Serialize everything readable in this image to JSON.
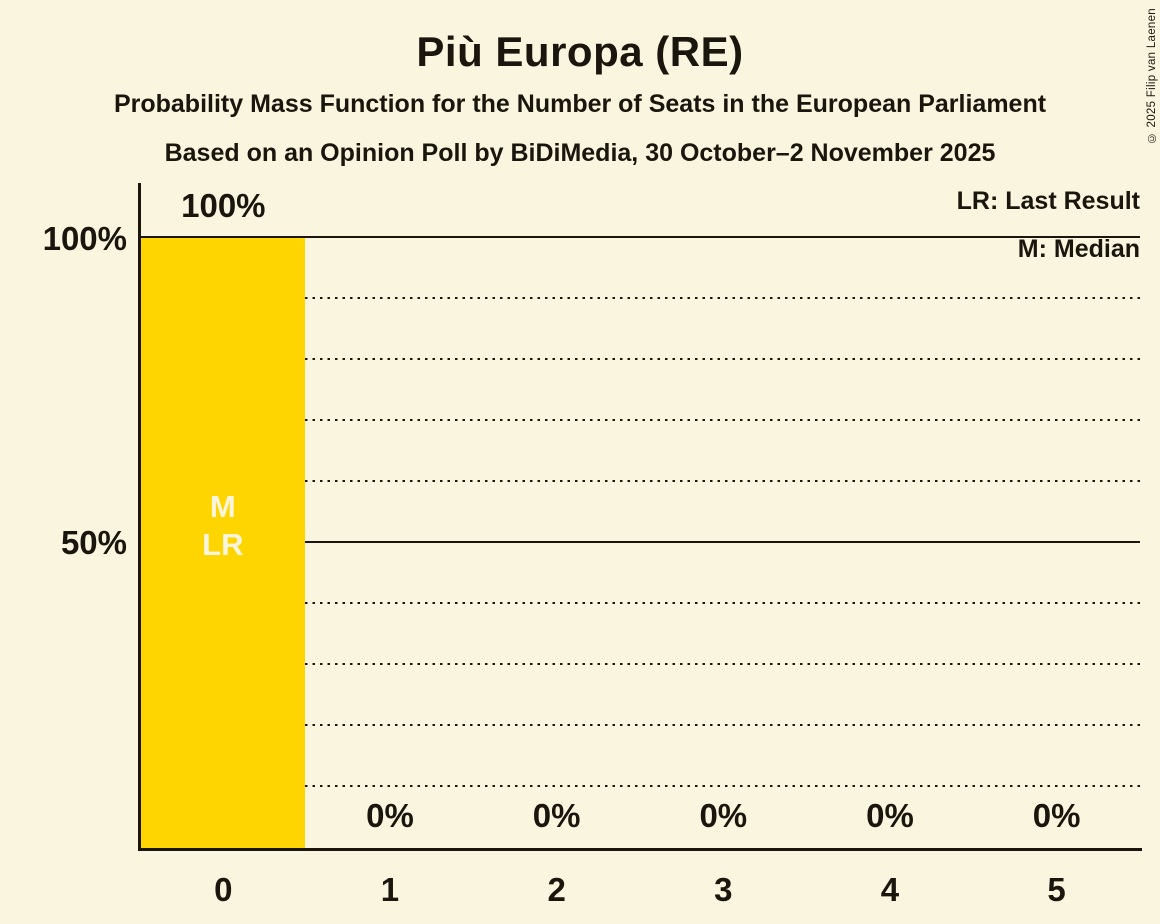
{
  "header": {
    "title": "Più Europa (RE)",
    "subtitle_line1": "Probability Mass Function for the Number of Seats in the European Parliament",
    "subtitle_line2": "Based on an Opinion Poll by BiDiMedia, 30 October–2 November 2025"
  },
  "legend": {
    "last_result": "LR: Last Result",
    "median": "M: Median"
  },
  "copyright": "© 2025 Filip van Laenen",
  "chart_data": {
    "type": "bar",
    "title": "Più Europa (RE)",
    "xlabel": "Number of seats",
    "ylabel": "Probability",
    "categories": [
      "0",
      "1",
      "2",
      "3",
      "4",
      "5"
    ],
    "values": [
      100,
      0,
      0,
      0,
      0,
      0
    ],
    "value_labels": [
      "100%",
      "0%",
      "0%",
      "0%",
      "0%",
      "0%"
    ],
    "ylim": [
      0,
      100
    ],
    "y_tick_labels": {
      "p100": "100%",
      "p50": "50%"
    },
    "y_gridlines_solid": [
      50,
      100
    ],
    "y_gridlines_dotted": [
      10,
      20,
      30,
      40,
      60,
      70,
      80,
      90
    ],
    "legend_position": "top-right",
    "grid": true,
    "median_category": "0",
    "last_result_category": "0",
    "bar_annotations": {
      "median": "M",
      "last_result": "LR"
    },
    "colors": {
      "bar": "#FFD500",
      "background": "#FAF5DF",
      "text": "#1A160D",
      "line": "#1A160D",
      "bar_annotation_text": "#FAF5DF"
    }
  }
}
